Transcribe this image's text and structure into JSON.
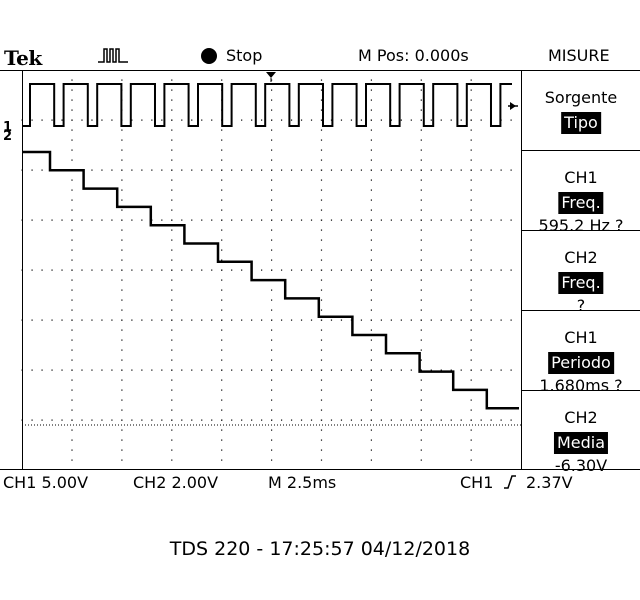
{
  "header": {
    "brand": "Tek",
    "acquisition_icon": "pulse-acquire-icon",
    "run_state": "Stop",
    "horizontal_position": "M Pos: 0.000s",
    "menu_title": "MISURE"
  },
  "channel_markers": {
    "ch1": "1",
    "ch2": "2",
    "trigger_arrow": "←"
  },
  "measurements": [
    {
      "line1": "Sorgente",
      "highlight": "Tipo",
      "value": ""
    },
    {
      "line1": "CH1",
      "highlight": "Freq.",
      "value": "595.2 Hz ?"
    },
    {
      "line1": "CH2",
      "highlight": "Freq.",
      "value": "?"
    },
    {
      "line1": "CH1",
      "highlight": "Periodo",
      "value": "1.680ms ?"
    },
    {
      "line1": "CH2",
      "highlight": "Media",
      "value": "-6.30V"
    }
  ],
  "footer": {
    "ch1_scale": "CH1  5.00V",
    "ch2_scale": "CH2  2.00V",
    "timebase": "M 2.5ms",
    "trigger_source": "CH1",
    "trigger_level": "2.37V"
  },
  "caption": "TDS 220 - 17:25:57   04/12/2018",
  "colors": {
    "background": "#ffffff",
    "trace": "#000000",
    "highlight_bg": "#000000",
    "highlight_text": "#ffffff"
  }
}
